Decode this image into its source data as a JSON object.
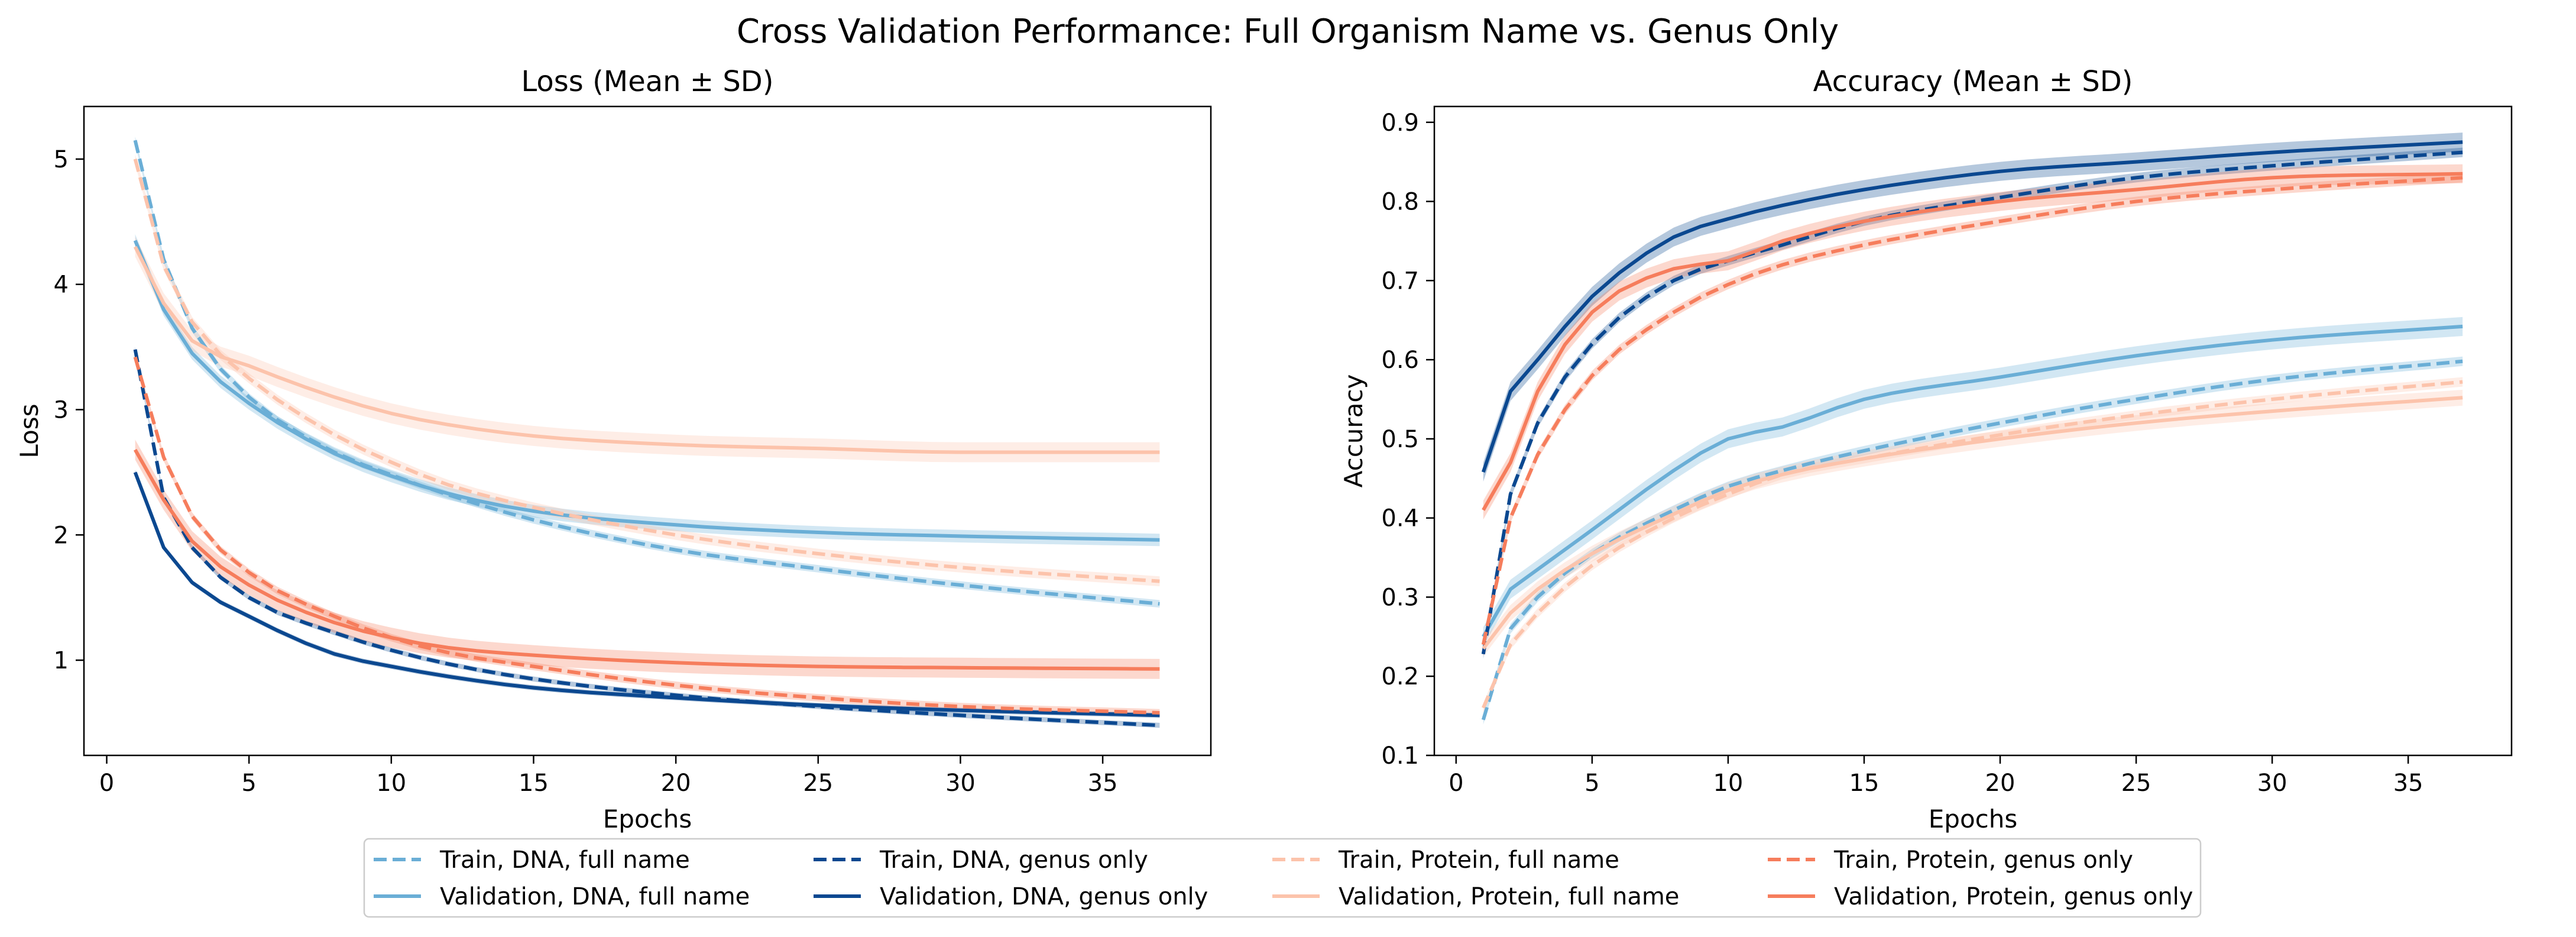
{
  "figure_title": "Cross Validation Performance: Full Organism Name vs. Genus Only",
  "legend": [
    {
      "label": "Train, DNA, full name",
      "color": "#6aaed6",
      "dash": true
    },
    {
      "label": "Validation, DNA, full name",
      "color": "#6aaed6",
      "dash": false
    },
    {
      "label": "Train, DNA, genus only",
      "color": "#0b4890",
      "dash": true
    },
    {
      "label": "Validation, DNA, genus only",
      "color": "#0b4890",
      "dash": false
    },
    {
      "label": "Train, Protein, full name",
      "color": "#fcc3ab",
      "dash": true
    },
    {
      "label": "Validation, Protein, full name",
      "color": "#fcc3ab",
      "dash": false
    },
    {
      "label": "Train, Protein, genus only",
      "color": "#f67d5c",
      "dash": true
    },
    {
      "label": "Validation, Protein, genus only",
      "color": "#f67d5c",
      "dash": false
    }
  ],
  "chart_data": [
    {
      "type": "line",
      "title": "Loss (Mean ± SD)",
      "xlabel": "Epochs",
      "ylabel": "Loss",
      "xlim": [
        -0.8,
        38.8
      ],
      "ylim": [
        0.24,
        5.42
      ],
      "xticks": [
        0,
        5,
        10,
        15,
        20,
        25,
        30,
        35
      ],
      "yticks": [
        1,
        2,
        3,
        4,
        5
      ],
      "grid": false,
      "shaded_band": "mean ± SD",
      "series": [
        {
          "name": "Train, DNA, full name",
          "color": "#6aaed6",
          "dash": true,
          "sd": 0.03,
          "anchors": [
            [
              1,
              5.15
            ],
            [
              2,
              4.2
            ],
            [
              3,
              3.65
            ],
            [
              5,
              3.1
            ],
            [
              8,
              2.66
            ],
            [
              10,
              2.48
            ],
            [
              12,
              2.32
            ],
            [
              15,
              2.12
            ],
            [
              20,
              1.88
            ],
            [
              25,
              1.73
            ],
            [
              30,
              1.6
            ],
            [
              37,
              1.45
            ]
          ]
        },
        {
          "name": "Validation, DNA, full name",
          "color": "#6aaed6",
          "dash": false,
          "sd": 0.05,
          "anchors": [
            [
              1,
              4.35
            ],
            [
              2,
              3.8
            ],
            [
              3,
              3.45
            ],
            [
              5,
              3.05
            ],
            [
              8,
              2.65
            ],
            [
              10,
              2.47
            ],
            [
              12,
              2.33
            ],
            [
              15,
              2.19
            ],
            [
              20,
              2.08
            ],
            [
              25,
              2.02
            ],
            [
              30,
              1.99
            ],
            [
              37,
              1.96
            ]
          ]
        },
        {
          "name": "Train, DNA, genus only",
          "color": "#0b4890",
          "dash": true,
          "sd": 0.02,
          "anchors": [
            [
              1,
              3.48
            ],
            [
              2,
              2.3
            ],
            [
              3,
              1.9
            ],
            [
              5,
              1.5
            ],
            [
              8,
              1.22
            ],
            [
              10,
              1.08
            ],
            [
              12,
              0.97
            ],
            [
              15,
              0.85
            ],
            [
              20,
              0.72
            ],
            [
              25,
              0.63
            ],
            [
              30,
              0.56
            ],
            [
              37,
              0.48
            ]
          ]
        },
        {
          "name": "Validation, DNA, genus only",
          "color": "#0b4890",
          "dash": false,
          "sd": 0.02,
          "anchors": [
            [
              1,
              2.5
            ],
            [
              2,
              1.9
            ],
            [
              3,
              1.62
            ],
            [
              5,
              1.35
            ],
            [
              8,
              1.05
            ],
            [
              10,
              0.95
            ],
            [
              12,
              0.87
            ],
            [
              15,
              0.78
            ],
            [
              20,
              0.7
            ],
            [
              25,
              0.64
            ],
            [
              30,
              0.6
            ],
            [
              37,
              0.56
            ]
          ]
        },
        {
          "name": "Train, Protein, full name",
          "color": "#fcc3ab",
          "dash": true,
          "sd": 0.04,
          "anchors": [
            [
              1,
              5.0
            ],
            [
              2,
              4.15
            ],
            [
              3,
              3.7
            ],
            [
              5,
              3.25
            ],
            [
              8,
              2.8
            ],
            [
              10,
              2.58
            ],
            [
              12,
              2.4
            ],
            [
              15,
              2.22
            ],
            [
              20,
              2.0
            ],
            [
              25,
              1.85
            ],
            [
              30,
              1.74
            ],
            [
              37,
              1.63
            ]
          ]
        },
        {
          "name": "Validation, Protein, full name",
          "color": "#fcc3ab",
          "dash": false,
          "sd": 0.08,
          "anchors": [
            [
              1,
              4.3
            ],
            [
              2,
              3.85
            ],
            [
              3,
              3.55
            ],
            [
              5,
              3.35
            ],
            [
              8,
              3.1
            ],
            [
              10,
              2.97
            ],
            [
              12,
              2.88
            ],
            [
              15,
              2.79
            ],
            [
              20,
              2.72
            ],
            [
              25,
              2.69
            ],
            [
              30,
              2.66
            ],
            [
              37,
              2.66
            ]
          ]
        },
        {
          "name": "Train, Protein, genus only",
          "color": "#f67d5c",
          "dash": true,
          "sd": 0.03,
          "anchors": [
            [
              1,
              3.42
            ],
            [
              2,
              2.62
            ],
            [
              3,
              2.15
            ],
            [
              5,
              1.7
            ],
            [
              8,
              1.35
            ],
            [
              10,
              1.18
            ],
            [
              12,
              1.06
            ],
            [
              15,
              0.95
            ],
            [
              20,
              0.8
            ],
            [
              25,
              0.7
            ],
            [
              30,
              0.63
            ],
            [
              37,
              0.58
            ]
          ]
        },
        {
          "name": "Validation, Protein, genus only",
          "color": "#f67d5c",
          "dash": false,
          "sd": 0.08,
          "anchors": [
            [
              1,
              2.68
            ],
            [
              2,
              2.28
            ],
            [
              3,
              1.95
            ],
            [
              5,
              1.6
            ],
            [
              8,
              1.3
            ],
            [
              10,
              1.18
            ],
            [
              12,
              1.1
            ],
            [
              15,
              1.04
            ],
            [
              20,
              0.98
            ],
            [
              25,
              0.95
            ],
            [
              30,
              0.94
            ],
            [
              37,
              0.93
            ]
          ]
        }
      ]
    },
    {
      "type": "line",
      "title": "Accuracy (Mean ± SD)",
      "xlabel": "Epochs",
      "ylabel": "Accuracy",
      "xlim": [
        -0.8,
        38.8
      ],
      "ylim": [
        0.1,
        0.92
      ],
      "xticks": [
        0,
        5,
        10,
        15,
        20,
        25,
        30,
        35
      ],
      "yticks": [
        0.1,
        0.2,
        0.3,
        0.4,
        0.5,
        0.6,
        0.7,
        0.8,
        0.9
      ],
      "grid": false,
      "shaded_band": "mean ± SD",
      "series": [
        {
          "name": "Train, DNA, full name",
          "color": "#6aaed6",
          "dash": true,
          "sd": 0.006,
          "anchors": [
            [
              1,
              0.145
            ],
            [
              2,
              0.26
            ],
            [
              3,
              0.3
            ],
            [
              5,
              0.355
            ],
            [
              8,
              0.41
            ],
            [
              10,
              0.44
            ],
            [
              12,
              0.46
            ],
            [
              15,
              0.485
            ],
            [
              20,
              0.52
            ],
            [
              25,
              0.55
            ],
            [
              30,
              0.575
            ],
            [
              37,
              0.598
            ]
          ]
        },
        {
          "name": "Validation, DNA, full name",
          "color": "#6aaed6",
          "dash": false,
          "sd": 0.012,
          "anchors": [
            [
              1,
              0.25
            ],
            [
              2,
              0.31
            ],
            [
              3,
              0.335
            ],
            [
              5,
              0.385
            ],
            [
              8,
              0.46
            ],
            [
              10,
              0.5
            ],
            [
              12,
              0.515
            ],
            [
              15,
              0.55
            ],
            [
              20,
              0.578
            ],
            [
              25,
              0.605
            ],
            [
              30,
              0.625
            ],
            [
              37,
              0.642
            ]
          ]
        },
        {
          "name": "Train, DNA, genus only",
          "color": "#0b4890",
          "dash": true,
          "sd": 0.006,
          "anchors": [
            [
              1,
              0.228
            ],
            [
              2,
              0.43
            ],
            [
              3,
              0.52
            ],
            [
              5,
              0.62
            ],
            [
              8,
              0.7
            ],
            [
              10,
              0.725
            ],
            [
              12,
              0.745
            ],
            [
              15,
              0.775
            ],
            [
              20,
              0.805
            ],
            [
              25,
              0.83
            ],
            [
              30,
              0.845
            ],
            [
              37,
              0.862
            ]
          ]
        },
        {
          "name": "Validation, DNA, genus only",
          "color": "#0b4890",
          "dash": false,
          "sd": 0.012,
          "anchors": [
            [
              1,
              0.458
            ],
            [
              2,
              0.56
            ],
            [
              3,
              0.6
            ],
            [
              5,
              0.68
            ],
            [
              8,
              0.755
            ],
            [
              10,
              0.778
            ],
            [
              12,
              0.795
            ],
            [
              15,
              0.815
            ],
            [
              20,
              0.838
            ],
            [
              25,
              0.85
            ],
            [
              30,
              0.862
            ],
            [
              37,
              0.875
            ]
          ]
        },
        {
          "name": "Train, Protein, full name",
          "color": "#fcc3ab",
          "dash": true,
          "sd": 0.006,
          "anchors": [
            [
              1,
              0.16
            ],
            [
              2,
              0.24
            ],
            [
              3,
              0.28
            ],
            [
              5,
              0.34
            ],
            [
              8,
              0.4
            ],
            [
              10,
              0.43
            ],
            [
              12,
              0.455
            ],
            [
              15,
              0.475
            ],
            [
              20,
              0.505
            ],
            [
              25,
              0.53
            ],
            [
              30,
              0.55
            ],
            [
              37,
              0.572
            ]
          ]
        },
        {
          "name": "Validation, Protein, full name",
          "color": "#fcc3ab",
          "dash": false,
          "sd": 0.01,
          "anchors": [
            [
              1,
              0.235
            ],
            [
              2,
              0.28
            ],
            [
              3,
              0.31
            ],
            [
              5,
              0.355
            ],
            [
              8,
              0.405
            ],
            [
              10,
              0.435
            ],
            [
              12,
              0.455
            ],
            [
              15,
              0.475
            ],
            [
              20,
              0.5
            ],
            [
              25,
              0.52
            ],
            [
              30,
              0.535
            ],
            [
              37,
              0.552
            ]
          ]
        },
        {
          "name": "Train, Protein, genus only",
          "color": "#f67d5c",
          "dash": true,
          "sd": 0.006,
          "anchors": [
            [
              1,
              0.24
            ],
            [
              2,
              0.4
            ],
            [
              3,
              0.48
            ],
            [
              5,
              0.58
            ],
            [
              8,
              0.66
            ],
            [
              10,
              0.695
            ],
            [
              12,
              0.72
            ],
            [
              15,
              0.745
            ],
            [
              20,
              0.775
            ],
            [
              25,
              0.8
            ],
            [
              30,
              0.815
            ],
            [
              37,
              0.83
            ]
          ]
        },
        {
          "name": "Validation, Protein, genus only",
          "color": "#f67d5c",
          "dash": false,
          "sd": 0.012,
          "anchors": [
            [
              1,
              0.41
            ],
            [
              2,
              0.47
            ],
            [
              3,
              0.56
            ],
            [
              5,
              0.66
            ],
            [
              8,
              0.715
            ],
            [
              10,
              0.725
            ],
            [
              12,
              0.75
            ],
            [
              15,
              0.775
            ],
            [
              20,
              0.8
            ],
            [
              25,
              0.815
            ],
            [
              30,
              0.83
            ],
            [
              37,
              0.835
            ]
          ]
        }
      ]
    }
  ]
}
